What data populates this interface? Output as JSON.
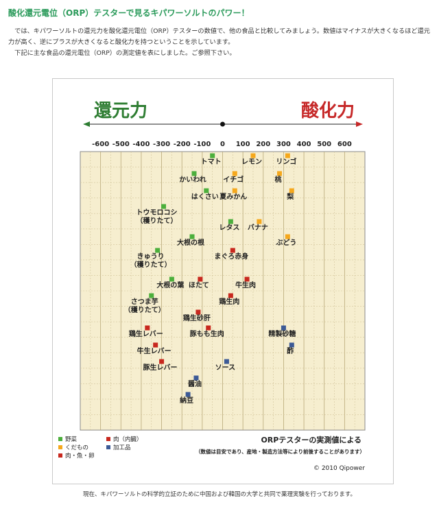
{
  "page": {
    "heading": "酸化還元電位（ORP）テスターで見るキパワーソルトのパワー！",
    "para1": "　では、キパワーソルトの還元力を酸化還元電位（ORP）テスターの数値で、他の食品と比較してみましょう。数値はマイナスが大きくなるほど還元力が高く、逆にプラスが大きくなると酸化力を持つということを示しています。",
    "para2": "　下記に主な食品の還元電位（ORP）の測定値を表にしました。ご参照下さい。",
    "footer": "現在、キパワーソルトの科学的立証のために中国および韓国の大学と共同で薬理実験を行っております。"
  },
  "chart_data": {
    "type": "scatter",
    "left_label": "還元力",
    "right_label": "酸化力",
    "xlim": [
      -700,
      700
    ],
    "x_ticks": [
      "-600",
      "-500",
      "-400",
      "-300",
      "-200",
      "-100",
      "0",
      "100",
      "200",
      "300",
      "400",
      "500",
      "600"
    ],
    "colors": {
      "vegetable": "#4caf3c",
      "fruit": "#f5a81c",
      "meat_fish_egg": "#c8281e",
      "processed": "#3c5a96",
      "reduce_label": "#2e7d32",
      "oxidize_label": "#c62828",
      "grid_bg": "#f6eecf"
    },
    "points": [
      {
        "name": "トマト",
        "x": -50,
        "cat": "vegetable"
      },
      {
        "name": "レモン",
        "x": 150,
        "cat": "fruit"
      },
      {
        "name": "リンゴ",
        "x": 320,
        "cat": "fruit"
      },
      {
        "name": "かいわれ",
        "x": -140,
        "cat": "vegetable"
      },
      {
        "name": "イチゴ",
        "x": 60,
        "cat": "fruit"
      },
      {
        "name": "桃",
        "x": 280,
        "cat": "fruit"
      },
      {
        "name": "はくさい",
        "x": -80,
        "cat": "vegetable"
      },
      {
        "name": "夏みかん",
        "x": 60,
        "cat": "fruit"
      },
      {
        "name": "梨",
        "x": 340,
        "cat": "fruit"
      },
      {
        "name": "トウモロコシ\n（穫りたて）",
        "x": -290,
        "cat": "vegetable"
      },
      {
        "name": "レタス",
        "x": 40,
        "cat": "vegetable"
      },
      {
        "name": "バナナ",
        "x": 180,
        "cat": "fruit"
      },
      {
        "name": "大根の根",
        "x": -150,
        "cat": "vegetable"
      },
      {
        "name": "ぶどう",
        "x": 320,
        "cat": "fruit"
      },
      {
        "name": "きゅうり\n（穫りたて）",
        "x": -320,
        "cat": "vegetable"
      },
      {
        "name": "まぐろ赤身",
        "x": 50,
        "cat": "meat_fish_egg"
      },
      {
        "name": "大根の葉",
        "x": -250,
        "cat": "vegetable"
      },
      {
        "name": "ほたて",
        "x": -110,
        "cat": "meat_fish_egg"
      },
      {
        "name": "牛生肉",
        "x": 120,
        "cat": "meat_fish_egg"
      },
      {
        "name": "さつま芋\n（穫りたて）",
        "x": -350,
        "cat": "vegetable"
      },
      {
        "name": "鶏生肉",
        "x": 40,
        "cat": "meat_fish_egg"
      },
      {
        "name": "鶏生砂肝",
        "x": -120,
        "cat": "meat_fish_egg"
      },
      {
        "name": "鶏生レバー",
        "x": -370,
        "cat": "meat_fish_egg"
      },
      {
        "name": "豚もも生肉",
        "x": -70,
        "cat": "meat_fish_egg"
      },
      {
        "name": "精製砂糖",
        "x": 300,
        "cat": "processed"
      },
      {
        "name": "牛生レバー",
        "x": -330,
        "cat": "meat_fish_egg"
      },
      {
        "name": "酢",
        "x": 340,
        "cat": "processed"
      },
      {
        "name": "豚生レバー",
        "x": -300,
        "cat": "meat_fish_egg"
      },
      {
        "name": "ソース",
        "x": 20,
        "cat": "processed"
      },
      {
        "name": "醤油",
        "x": -130,
        "cat": "processed"
      },
      {
        "name": "納豆",
        "x": -170,
        "cat": "processed"
      }
    ],
    "legend": [
      {
        "label": "野菜",
        "cat": "vegetable"
      },
      {
        "label": "くだもの",
        "cat": "fruit"
      },
      {
        "label": "肉・魚・卵",
        "cat": "meat_fish_egg"
      },
      {
        "label": "肉（内臓）",
        "cat": "meat_fish_egg"
      },
      {
        "label": "加工品",
        "cat": "processed"
      }
    ],
    "note": "ORPテスターの実測値による",
    "note_sub": "（数値は目安であり、産地・製造方法等により前後することがあります）",
    "copyright": "© 2010 Qipower"
  }
}
